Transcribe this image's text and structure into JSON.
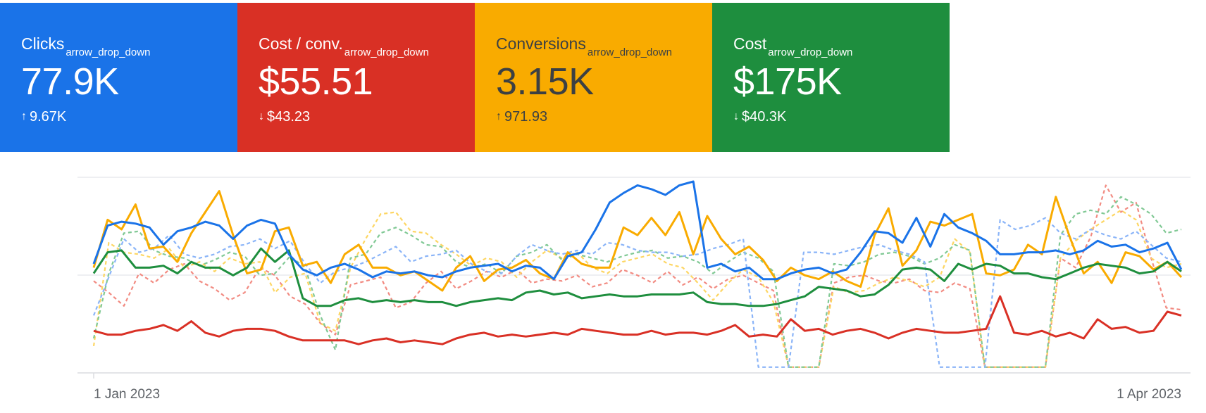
{
  "cards": [
    {
      "label": "Clicks",
      "dropdown": "arrow_drop_down",
      "value": "77.9K",
      "delta_arrow": "↑",
      "delta": "9.67K",
      "color": "#1a73e8"
    },
    {
      "label": "Cost / conv.",
      "dropdown": "arrow_drop_down",
      "value": "$55.51",
      "delta_arrow": "↓",
      "delta": "$43.23",
      "color": "#d93025"
    },
    {
      "label": "Conversions",
      "dropdown": "arrow_drop_down",
      "value": "3.15K",
      "delta_arrow": "↑",
      "delta": "971.93",
      "color": "#f9ab00"
    },
    {
      "label": "Cost",
      "dropdown": "arrow_drop_down",
      "value": "$175K",
      "delta_arrow": "↓",
      "delta": "$40.3K",
      "color": "#1e8e3e"
    }
  ],
  "chart_data": {
    "type": "line",
    "x_ticks": [
      "1 Jan 2023",
      "1 Apr 2023"
    ],
    "y_range": [
      0,
      100
    ],
    "grid": true,
    "series": [
      {
        "metric": "Clicks",
        "style": "solid",
        "color": "#1a73e8",
        "values": [
          57,
          77,
          79,
          78,
          76,
          67,
          74,
          76,
          79,
          77,
          70,
          77,
          80,
          78,
          62,
          54,
          51,
          55,
          57,
          54,
          50,
          53,
          52,
          53,
          51,
          50,
          53,
          55,
          56,
          57,
          53,
          56,
          55,
          49,
          61,
          63,
          75,
          89,
          94,
          98,
          96,
          93,
          98,
          100,
          55,
          57,
          53,
          55,
          49,
          49,
          52,
          54,
          55,
          52,
          54,
          63,
          74,
          73,
          68,
          81,
          66,
          83,
          76,
          73,
          69,
          62,
          62,
          63,
          63,
          64,
          62,
          64,
          69,
          66,
          67,
          63,
          65,
          68,
          54
        ]
      },
      {
        "metric": "Cost",
        "style": "solid",
        "color": "#1e8e3e",
        "values": [
          52,
          63,
          64,
          55,
          55,
          56,
          52,
          58,
          55,
          55,
          51,
          55,
          65,
          58,
          64,
          39,
          35,
          35,
          38,
          39,
          37,
          38,
          37,
          38,
          37,
          37,
          35,
          37,
          38,
          39,
          38,
          42,
          43,
          41,
          42,
          39,
          40,
          41,
          40,
          40,
          41,
          41,
          41,
          42,
          37,
          36,
          36,
          35,
          35,
          36,
          38,
          40,
          45,
          44,
          43,
          40,
          41,
          46,
          54,
          55,
          54,
          48,
          57,
          54,
          57,
          56,
          52,
          52,
          50,
          49,
          52,
          55,
          57,
          56,
          55,
          52,
          53,
          58,
          53
        ]
      },
      {
        "metric": "Conversions",
        "style": "solid",
        "color": "#f9ab00",
        "values": [
          55,
          80,
          75,
          88,
          65,
          66,
          58,
          73,
          84,
          95,
          72,
          52,
          54,
          74,
          76,
          56,
          58,
          47,
          62,
          67,
          55,
          55,
          51,
          53,
          48,
          43,
          55,
          61,
          48,
          54,
          55,
          59,
          52,
          49,
          63,
          57,
          55,
          55,
          76,
          72,
          81,
          72,
          84,
          62,
          82,
          70,
          62,
          66,
          59,
          48,
          55,
          51,
          49,
          53,
          48,
          45,
          72,
          86,
          56,
          64,
          79,
          77,
          80,
          83,
          52,
          51,
          54,
          67,
          62,
          92,
          71,
          52,
          58,
          47,
          63,
          61,
          54,
          58,
          50
        ]
      },
      {
        "metric": "Cost / conv.",
        "style": "solid",
        "color": "#d93025",
        "values": [
          22,
          20,
          20,
          22,
          23,
          25,
          22,
          27,
          21,
          19,
          22,
          23,
          23,
          22,
          19,
          17,
          17,
          17,
          17,
          15,
          17,
          18,
          16,
          17,
          16,
          15,
          18,
          20,
          21,
          19,
          20,
          19,
          20,
          21,
          20,
          23,
          22,
          21,
          20,
          20,
          22,
          20,
          21,
          21,
          20,
          22,
          25,
          19,
          20,
          19,
          28,
          22,
          23,
          20,
          22,
          23,
          21,
          18,
          21,
          23,
          22,
          21,
          21,
          22,
          23,
          40,
          21,
          20,
          22,
          19,
          21,
          18,
          28,
          23,
          24,
          21,
          22,
          32,
          30
        ]
      },
      {
        "metric": "Clicks (comparison)",
        "style": "dashed",
        "color": "#8ab4f8",
        "values": [
          30,
          50,
          70,
          63,
          65,
          72,
          62,
          60,
          62,
          66,
          67,
          70,
          65,
          69,
          57,
          47,
          53,
          55,
          58,
          62,
          66,
          58,
          61,
          62,
          64,
          57,
          53,
          52,
          61,
          67,
          64,
          62,
          64,
          62,
          68,
          67,
          64,
          63,
          63,
          61,
          62,
          65,
          67,
          70,
          3,
          3,
          3,
          63,
          63,
          62,
          64,
          66,
          67,
          64,
          62,
          58,
          3,
          3,
          3,
          3,
          80,
          75,
          77,
          81,
          73,
          70,
          75,
          72,
          70,
          74,
          67,
          60,
          58
        ]
      },
      {
        "metric": "Cost (comparison)",
        "style": "dashed",
        "color": "#81c995",
        "values": [
          18,
          52,
          73,
          74,
          64,
          61,
          60,
          56,
          59,
          63,
          61,
          51,
          52,
          61,
          55,
          30,
          12,
          60,
          62,
          73,
          76,
          72,
          67,
          66,
          58,
          55,
          57,
          52,
          61,
          63,
          67,
          59,
          62,
          60,
          58,
          61,
          63,
          64,
          60,
          61,
          58,
          52,
          58,
          63,
          60,
          53,
          3,
          3,
          3,
          57,
          56,
          58,
          62,
          63,
          61,
          57,
          60,
          67,
          64,
          3,
          3,
          3,
          3,
          3,
          72,
          83,
          85,
          83,
          92,
          88,
          83,
          73,
          75
        ]
      },
      {
        "metric": "Conversions (comparison)",
        "style": "dashed",
        "color": "#fdd663",
        "values": [
          14,
          68,
          63,
          62,
          60,
          65,
          55,
          58,
          53,
          60,
          57,
          58,
          42,
          50,
          52,
          26,
          22,
          55,
          70,
          83,
          84,
          74,
          73,
          67,
          62,
          56,
          60,
          58,
          50,
          58,
          64,
          60,
          63,
          55,
          52,
          58,
          60,
          62,
          57,
          55,
          47,
          38,
          47,
          54,
          50,
          37,
          3,
          3,
          3,
          45,
          42,
          43,
          47,
          50,
          48,
          45,
          50,
          70,
          63,
          3,
          3,
          3,
          3,
          3,
          60,
          69,
          75,
          80,
          85,
          80,
          60,
          55,
          57
        ]
      },
      {
        "metric": "Cost / conv. (comparison)",
        "style": "dashed",
        "color": "#f28b82",
        "values": [
          48,
          42,
          35,
          52,
          47,
          54,
          57,
          48,
          44,
          38,
          42,
          55,
          51,
          40,
          36,
          26,
          20,
          46,
          48,
          50,
          34,
          37,
          47,
          53,
          44,
          48,
          53,
          50,
          54,
          47,
          49,
          48,
          51,
          45,
          47,
          54,
          51,
          47,
          53,
          46,
          50,
          44,
          49,
          51,
          47,
          43,
          3,
          3,
          3,
          47,
          50,
          51,
          48,
          47,
          49,
          43,
          42,
          47,
          44,
          3,
          3,
          3,
          3,
          3,
          60,
          55,
          71,
          98,
          84,
          89,
          60,
          34,
          33
        ]
      }
    ]
  }
}
